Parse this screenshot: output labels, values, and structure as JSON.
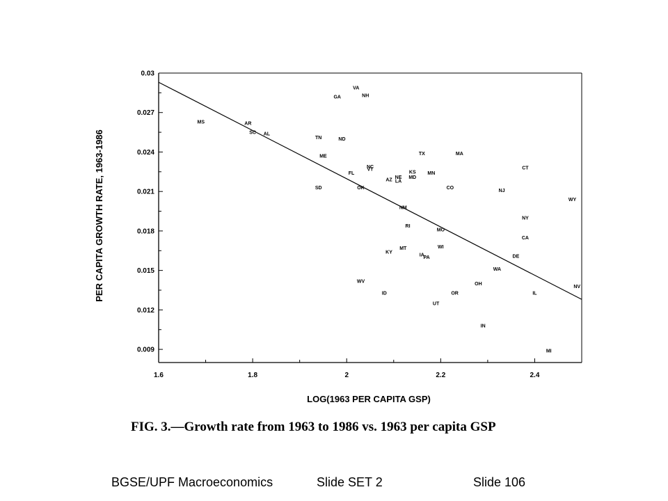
{
  "chart_data": {
    "type": "scatter",
    "caption": "FIG. 3.—Growth rate from 1963 to 1986 vs. 1963 per capita GSP",
    "xlabel": "LOG(1963 PER CAPITA GSP)",
    "ylabel": "PER CAPITA GROWTH RATE, 1963-1986",
    "xlim": [
      1.6,
      2.5
    ],
    "ylim": [
      0.008,
      0.03
    ],
    "x_ticks": [
      1.6,
      1.8,
      2,
      2.2,
      2.4
    ],
    "y_ticks": [
      0.03,
      0.027,
      0.024,
      0.021,
      0.018,
      0.015,
      0.012,
      0.009
    ],
    "grid": false,
    "fit_line": {
      "x": [
        1.6,
        2.5
      ],
      "y": [
        0.0293,
        0.0128
      ]
    },
    "points": [
      {
        "label": "VA",
        "x": 2.02,
        "y": 0.0289
      },
      {
        "label": "NH",
        "x": 2.04,
        "y": 0.0283
      },
      {
        "label": "GA",
        "x": 1.98,
        "y": 0.0282
      },
      {
        "label": "MS",
        "x": 1.69,
        "y": 0.0263
      },
      {
        "label": "AR",
        "x": 1.79,
        "y": 0.0262
      },
      {
        "label": "SC",
        "x": 1.8,
        "y": 0.0255
      },
      {
        "label": "AL",
        "x": 1.83,
        "y": 0.0254
      },
      {
        "label": "TN",
        "x": 1.94,
        "y": 0.0251
      },
      {
        "label": "ND",
        "x": 1.99,
        "y": 0.025
      },
      {
        "label": "TX",
        "x": 2.16,
        "y": 0.0239
      },
      {
        "label": "MA",
        "x": 2.24,
        "y": 0.0239
      },
      {
        "label": "ME",
        "x": 1.95,
        "y": 0.0237
      },
      {
        "label": "CT",
        "x": 2.38,
        "y": 0.0228
      },
      {
        "label": "NC",
        "x": 2.05,
        "y": 0.0229
      },
      {
        "label": "VT",
        "x": 2.05,
        "y": 0.0227
      },
      {
        "label": "FL",
        "x": 2.01,
        "y": 0.0224
      },
      {
        "label": "KS",
        "x": 2.14,
        "y": 0.0225
      },
      {
        "label": "MN",
        "x": 2.18,
        "y": 0.0224
      },
      {
        "label": "NE",
        "x": 2.11,
        "y": 0.0221
      },
      {
        "label": "MD",
        "x": 2.14,
        "y": 0.0221
      },
      {
        "label": "AZ",
        "x": 2.09,
        "y": 0.0219
      },
      {
        "label": "LA",
        "x": 2.11,
        "y": 0.0218
      },
      {
        "label": "SD",
        "x": 1.94,
        "y": 0.0213
      },
      {
        "label": "OK",
        "x": 2.03,
        "y": 0.0213
      },
      {
        "label": "CO",
        "x": 2.22,
        "y": 0.0213
      },
      {
        "label": "NJ",
        "x": 2.33,
        "y": 0.0211
      },
      {
        "label": "WY",
        "x": 2.48,
        "y": 0.0204
      },
      {
        "label": "NM",
        "x": 2.12,
        "y": 0.0198
      },
      {
        "label": "NY",
        "x": 2.38,
        "y": 0.019
      },
      {
        "label": "RI",
        "x": 2.13,
        "y": 0.0184
      },
      {
        "label": "MO",
        "x": 2.2,
        "y": 0.0181
      },
      {
        "label": "CA",
        "x": 2.38,
        "y": 0.0175
      },
      {
        "label": "WI",
        "x": 2.2,
        "y": 0.0168
      },
      {
        "label": "MT",
        "x": 2.12,
        "y": 0.0167
      },
      {
        "label": "KY",
        "x": 2.09,
        "y": 0.0164
      },
      {
        "label": "IA",
        "x": 2.16,
        "y": 0.0162
      },
      {
        "label": "PA",
        "x": 2.17,
        "y": 0.016
      },
      {
        "label": "DE",
        "x": 2.36,
        "y": 0.0161
      },
      {
        "label": "WA",
        "x": 2.32,
        "y": 0.0151
      },
      {
        "label": "WV",
        "x": 2.03,
        "y": 0.0142
      },
      {
        "label": "OH",
        "x": 2.28,
        "y": 0.014
      },
      {
        "label": "NV",
        "x": 2.49,
        "y": 0.0138
      },
      {
        "label": "ID",
        "x": 2.08,
        "y": 0.0133
      },
      {
        "label": "OR",
        "x": 2.23,
        "y": 0.0133
      },
      {
        "label": "IL",
        "x": 2.4,
        "y": 0.0133
      },
      {
        "label": "UT",
        "x": 2.19,
        "y": 0.0125
      },
      {
        "label": "IN",
        "x": 2.29,
        "y": 0.0108
      },
      {
        "label": "MI",
        "x": 2.43,
        "y": 0.0089
      }
    ]
  },
  "footer": {
    "left": "BGSE/UPF Macroeconomics",
    "middle": "Slide SET 2",
    "right": "Slide 106"
  }
}
